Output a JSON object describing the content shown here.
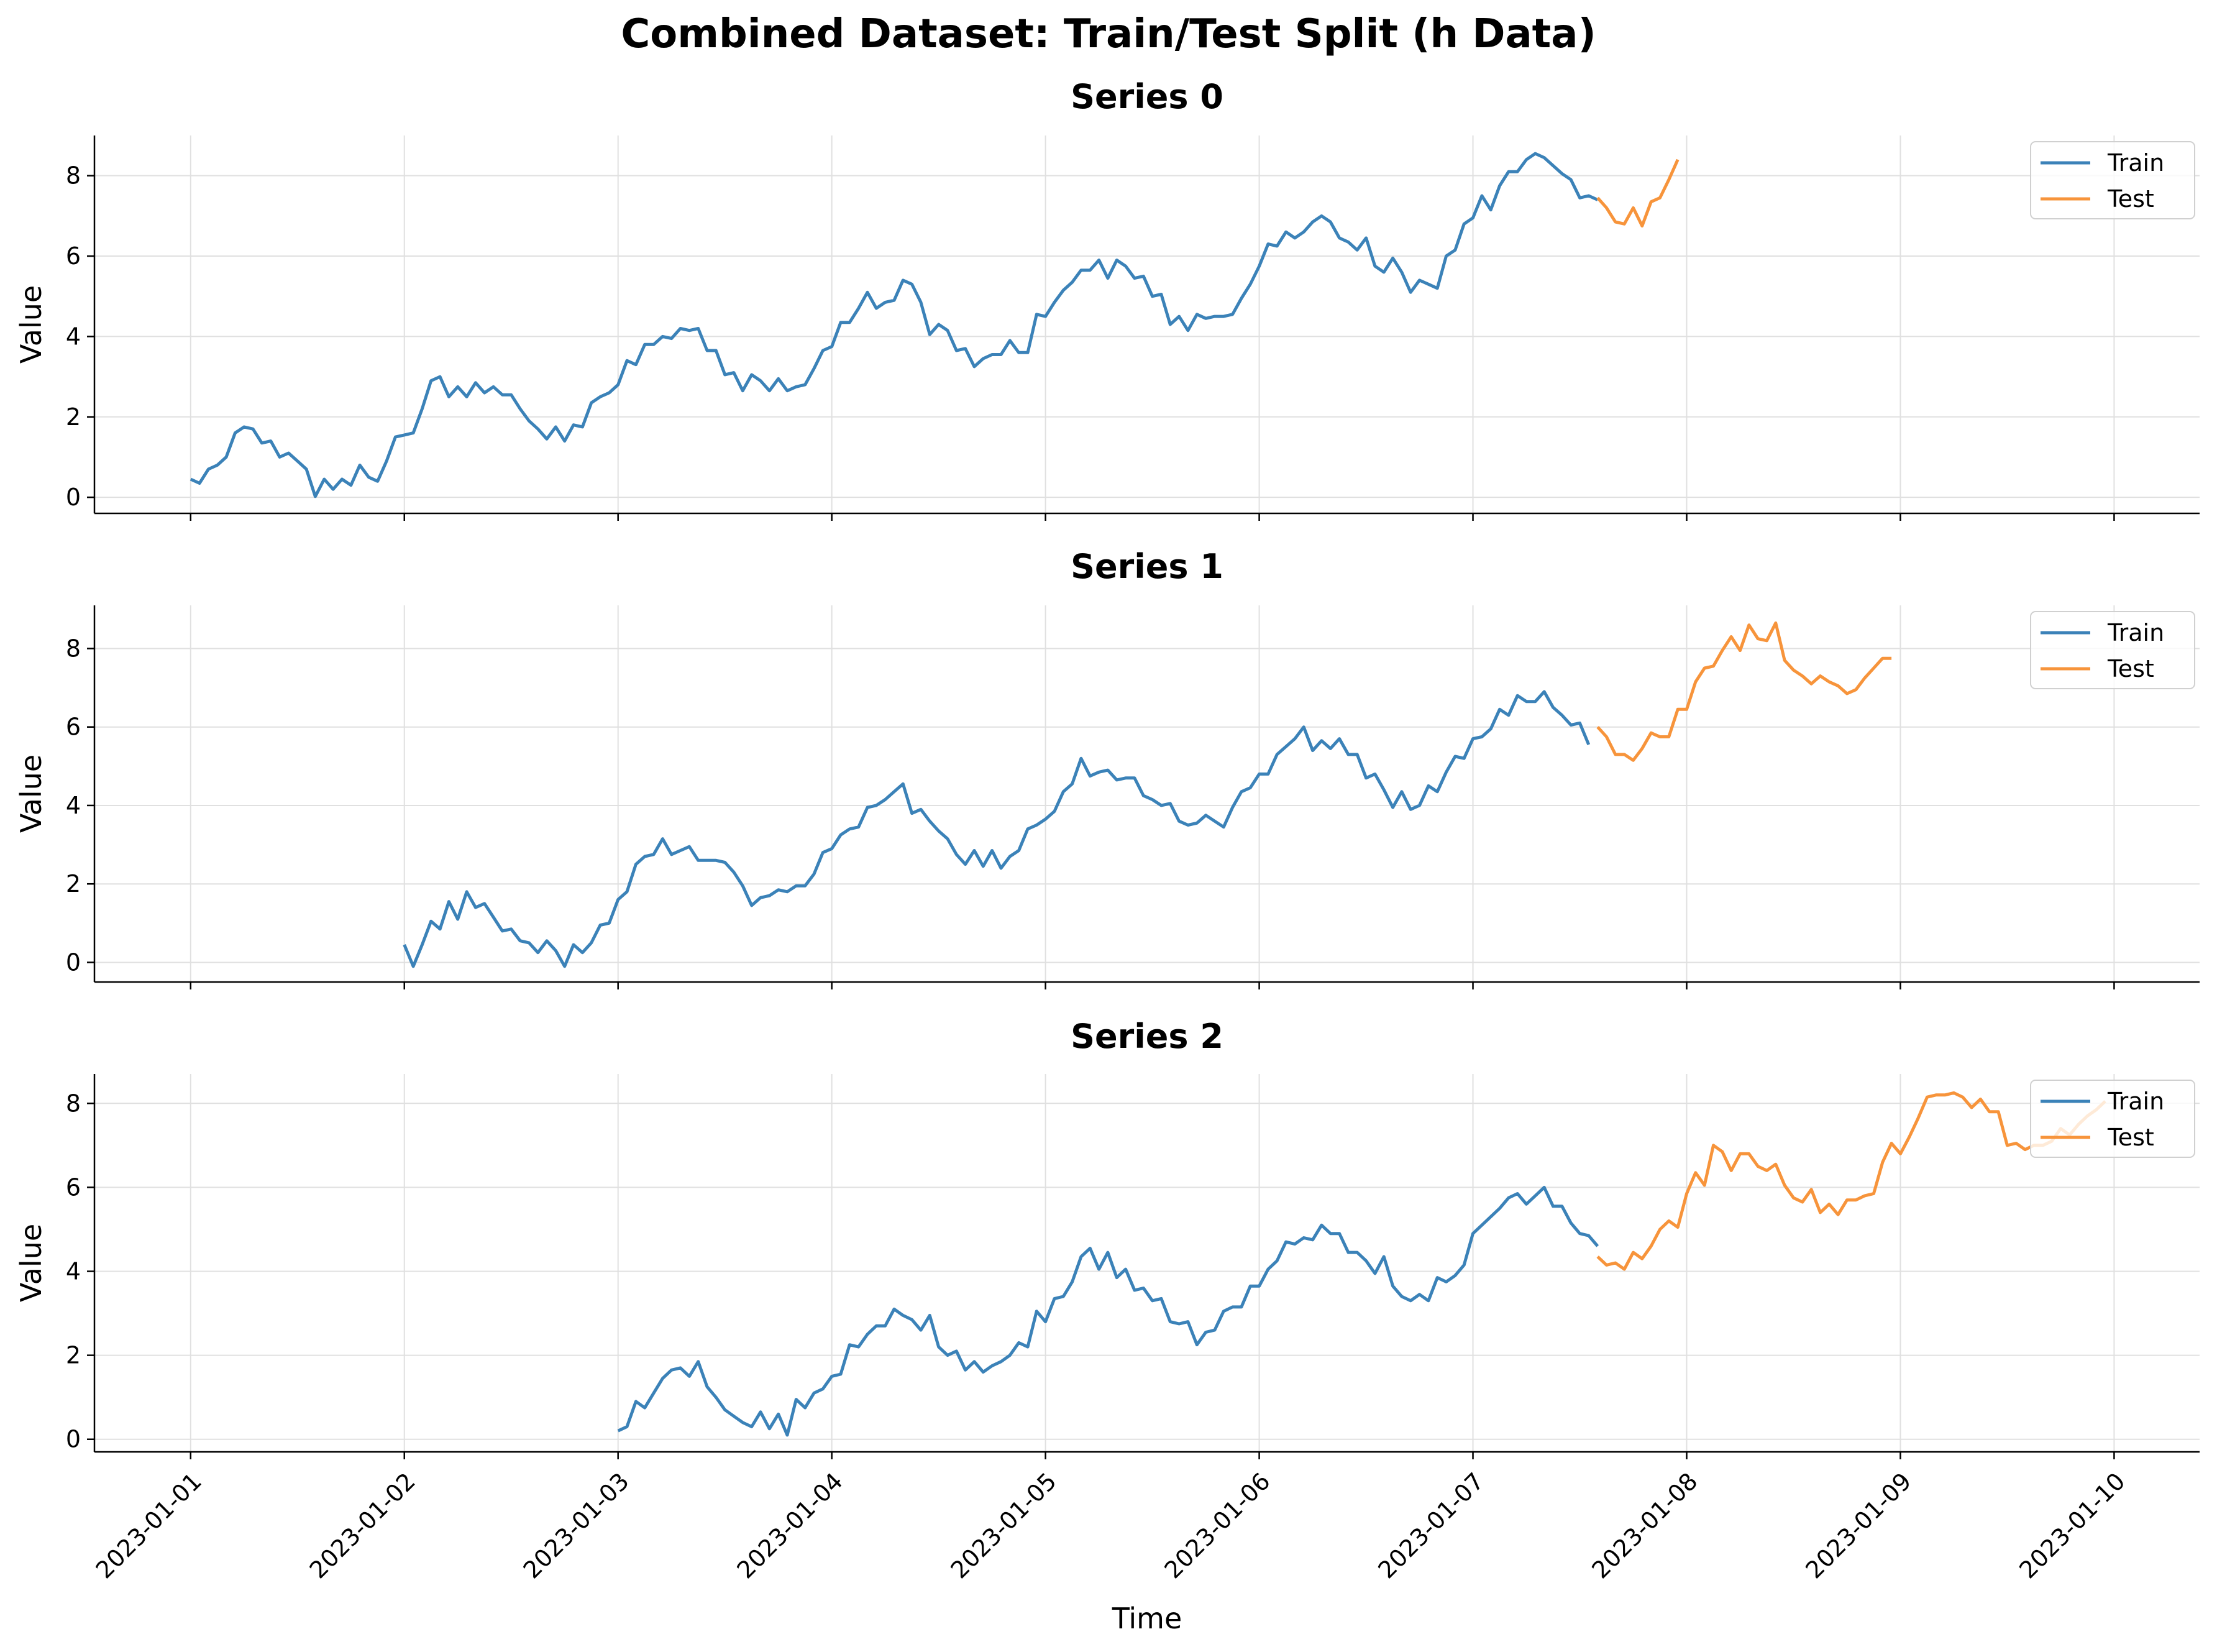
{
  "title": "Combined Dataset: Train/Test Split (h Data)",
  "colors": {
    "train": "#3b82b8",
    "test": "#f7943b",
    "grid": "#e0e0e0"
  },
  "chart_data": {
    "type": "line",
    "title": "Combined Dataset: Train/Test Split (h Data)",
    "xlabel": "Time",
    "x_ticks": [
      "2023-01-01",
      "2023-01-02",
      "2023-01-03",
      "2023-01-04",
      "2023-01-05",
      "2023-01-06",
      "2023-01-07",
      "2023-01-08",
      "2023-01-09",
      "2023-01-10"
    ],
    "xlim_days": [
      -0.45,
      9.4
    ],
    "grid": true,
    "legend": {
      "position": "top-right",
      "entries": [
        "Train",
        "Test"
      ]
    },
    "panels": [
      {
        "title": "Series 0",
        "ylabel": "Value",
        "ylim": [
          -0.4,
          9.0
        ],
        "yticks": [
          0,
          2,
          4,
          6,
          8
        ],
        "series": [
          {
            "name": "Train",
            "start": "2023-01-01",
            "step_hours": 1,
            "values": [
              0.45,
              0.35,
              0.7,
              0.8,
              1.0,
              1.6,
              1.75,
              1.7,
              1.35,
              1.4,
              1.0,
              1.1,
              0.9,
              0.7,
              0.02,
              0.45,
              0.2,
              0.45,
              0.3,
              0.8,
              0.5,
              0.4,
              0.9,
              1.5,
              1.55,
              1.6,
              2.2,
              2.9,
              3.0,
              2.5,
              2.75,
              2.5,
              2.85,
              2.6,
              2.75,
              2.55,
              2.55,
              2.2,
              1.9,
              1.7,
              1.45,
              1.75,
              1.4,
              1.8,
              1.75,
              2.35,
              2.5,
              2.6,
              2.8,
              3.4,
              3.3,
              3.8,
              3.8,
              4.0,
              3.95,
              4.2,
              4.15,
              4.2,
              3.65,
              3.65,
              3.05,
              3.1,
              2.65,
              3.05,
              2.9,
              2.65,
              2.95,
              2.65,
              2.75,
              2.8,
              3.2,
              3.65,
              3.75,
              4.35,
              4.35,
              4.7,
              5.1,
              4.7,
              4.85,
              4.9,
              5.4,
              5.3,
              4.85,
              4.05,
              4.3,
              4.15,
              3.65,
              3.7,
              3.25,
              3.45,
              3.55,
              3.55,
              3.9,
              3.6,
              3.6,
              4.55,
              4.5,
              4.85,
              5.15,
              5.35,
              5.65,
              5.65,
              5.9,
              5.45,
              5.9,
              5.75,
              5.45,
              5.5,
              5.0,
              5.05,
              4.3,
              4.5,
              4.15,
              4.55,
              4.45,
              4.5,
              4.5,
              4.55,
              4.95,
              5.3,
              5.75,
              6.3,
              6.25,
              6.6,
              6.45,
              6.6,
              6.85,
              7.0,
              6.85,
              6.45,
              6.35,
              6.15,
              6.45,
              5.75,
              5.6,
              5.95,
              5.6,
              5.1,
              5.4,
              5.3,
              5.2,
              6.0,
              6.15,
              6.8,
              6.95,
              7.5,
              7.15,
              7.75,
              8.1,
              8.1,
              8.4,
              8.55,
              8.45,
              8.25,
              8.05,
              7.9,
              7.45,
              7.5,
              7.4
            ]
          },
          {
            "name": "Test",
            "start": "2023-01-07T14:00",
            "step_hours": 1,
            "values": [
              7.45,
              7.2,
              6.85,
              6.8,
              7.2,
              6.75,
              7.35,
              7.45,
              7.9,
              8.4
            ]
          }
        ]
      },
      {
        "title": "Series 1",
        "ylabel": "Value",
        "ylim": [
          -0.5,
          9.1
        ],
        "yticks": [
          0,
          2,
          4,
          6,
          8
        ],
        "series": [
          {
            "name": "Train",
            "start": "2023-01-02",
            "step_hours": 1,
            "values": [
              0.45,
              -0.1,
              0.45,
              1.05,
              0.85,
              1.55,
              1.1,
              1.8,
              1.4,
              1.5,
              1.15,
              0.8,
              0.85,
              0.55,
              0.5,
              0.25,
              0.55,
              0.3,
              -0.1,
              0.45,
              0.25,
              0.5,
              0.95,
              1.0,
              1.6,
              1.8,
              2.5,
              2.7,
              2.75,
              3.15,
              2.75,
              2.85,
              2.95,
              2.6,
              2.6,
              2.6,
              2.55,
              2.3,
              1.95,
              1.45,
              1.65,
              1.7,
              1.85,
              1.8,
              1.95,
              1.95,
              2.25,
              2.8,
              2.9,
              3.25,
              3.4,
              3.45,
              3.95,
              4.0,
              4.15,
              4.35,
              4.55,
              3.8,
              3.9,
              3.6,
              3.35,
              3.15,
              2.75,
              2.5,
              2.85,
              2.45,
              2.85,
              2.4,
              2.7,
              2.85,
              3.4,
              3.5,
              3.65,
              3.85,
              4.35,
              4.55,
              5.2,
              4.75,
              4.85,
              4.9,
              4.65,
              4.7,
              4.7,
              4.25,
              4.15,
              4.0,
              4.05,
              3.6,
              3.5,
              3.55,
              3.75,
              3.6,
              3.45,
              3.95,
              4.35,
              4.45,
              4.8,
              4.8,
              5.3,
              5.5,
              5.7,
              6.0,
              5.4,
              5.65,
              5.45,
              5.7,
              5.3,
              5.3,
              4.7,
              4.8,
              4.4,
              3.95,
              4.35,
              3.9,
              4.0,
              4.5,
              4.35,
              4.85,
              5.25,
              5.2,
              5.7,
              5.75,
              5.95,
              6.45,
              6.3,
              6.8,
              6.65,
              6.65,
              6.9,
              6.5,
              6.3,
              6.05,
              6.1,
              5.55
            ]
          },
          {
            "name": "Test",
            "start": "2023-01-07T14:00",
            "step_hours": 1,
            "values": [
              6.0,
              5.75,
              5.3,
              5.3,
              5.15,
              5.45,
              5.85,
              5.75,
              5.75,
              6.45,
              6.45,
              7.15,
              7.5,
              7.55,
              7.95,
              8.3,
              7.95,
              8.6,
              8.25,
              8.2,
              8.65,
              7.7,
              7.45,
              7.3,
              7.1,
              7.3,
              7.15,
              7.05,
              6.85,
              6.95,
              7.25,
              7.5,
              7.75,
              7.75
            ]
          }
        ]
      },
      {
        "title": "Series 2",
        "ylabel": "Value",
        "ylim": [
          -0.3,
          8.7
        ],
        "yticks": [
          0,
          2,
          4,
          6,
          8
        ],
        "series": [
          {
            "name": "Train",
            "start": "2023-01-03",
            "step_hours": 1,
            "values": [
              0.2,
              0.3,
              0.9,
              0.75,
              1.1,
              1.45,
              1.65,
              1.7,
              1.5,
              1.85,
              1.25,
              1.0,
              0.7,
              0.55,
              0.4,
              0.3,
              0.65,
              0.25,
              0.6,
              0.1,
              0.95,
              0.75,
              1.1,
              1.2,
              1.5,
              1.55,
              2.25,
              2.2,
              2.5,
              2.7,
              2.7,
              3.1,
              2.95,
              2.85,
              2.6,
              2.95,
              2.2,
              2.0,
              2.1,
              1.65,
              1.85,
              1.6,
              1.75,
              1.85,
              2.0,
              2.3,
              2.2,
              3.05,
              2.8,
              3.35,
              3.4,
              3.75,
              4.35,
              4.55,
              4.05,
              4.45,
              3.85,
              4.05,
              3.55,
              3.6,
              3.3,
              3.35,
              2.8,
              2.75,
              2.8,
              2.25,
              2.55,
              2.6,
              3.05,
              3.15,
              3.15,
              3.65,
              3.65,
              4.05,
              4.25,
              4.7,
              4.65,
              4.8,
              4.75,
              5.1,
              4.9,
              4.9,
              4.45,
              4.45,
              4.25,
              3.95,
              4.35,
              3.65,
              3.4,
              3.3,
              3.45,
              3.3,
              3.85,
              3.75,
              3.9,
              4.15,
              4.9,
              5.1,
              5.3,
              5.5,
              5.75,
              5.85,
              5.6,
              5.8,
              6.0,
              5.55,
              5.55,
              5.15,
              4.9,
              4.85,
              4.6
            ]
          },
          {
            "name": "Test",
            "start": "2023-01-07T14:00",
            "step_hours": 1,
            "values": [
              4.35,
              4.15,
              4.2,
              4.05,
              4.45,
              4.3,
              4.6,
              5.0,
              5.2,
              5.05,
              5.85,
              6.35,
              6.05,
              7.0,
              6.85,
              6.4,
              6.8,
              6.8,
              6.5,
              6.4,
              6.55,
              6.05,
              5.75,
              5.65,
              5.95,
              5.4,
              5.6,
              5.35,
              5.7,
              5.7,
              5.8,
              5.85,
              6.6,
              7.05,
              6.8,
              7.2,
              7.65,
              8.15,
              8.2,
              8.2,
              8.25,
              8.15,
              7.9,
              8.1,
              7.8,
              7.8,
              7.0,
              7.05,
              6.9,
              7.0,
              7.0,
              7.1,
              7.4,
              7.25,
              7.5,
              7.7,
              7.85,
              8.05
            ]
          }
        ]
      }
    ]
  }
}
